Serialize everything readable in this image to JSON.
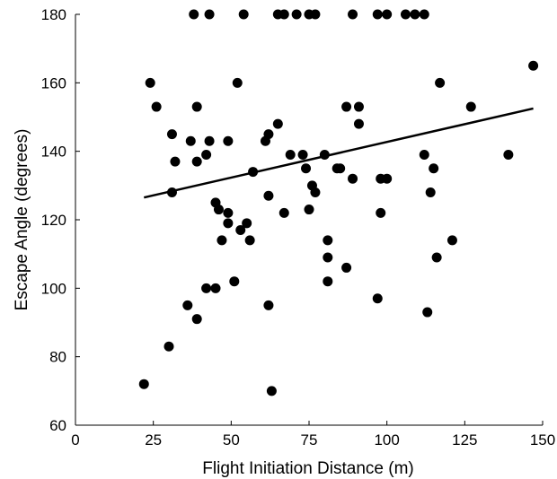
{
  "chart_data": {
    "type": "scatter",
    "xlabel": "Flight Initiation Distance (m)",
    "ylabel": "Escape Angle (degrees)",
    "xlim": [
      0,
      150
    ],
    "ylim": [
      60,
      180
    ],
    "xticks": [
      0,
      25,
      50,
      75,
      100,
      125,
      150
    ],
    "yticks": [
      60,
      80,
      100,
      120,
      140,
      160,
      180
    ],
    "grid": false,
    "legend": "none",
    "series": [
      {
        "points": [
          [
            38,
            180
          ],
          [
            43,
            180
          ],
          [
            54,
            180
          ],
          [
            65,
            180
          ],
          [
            67,
            180
          ],
          [
            71,
            180
          ],
          [
            75,
            180
          ],
          [
            77,
            180
          ],
          [
            89,
            180
          ],
          [
            97,
            180
          ],
          [
            100,
            180
          ],
          [
            106,
            180
          ],
          [
            109,
            180
          ],
          [
            112,
            180
          ],
          [
            24,
            160
          ],
          [
            52,
            160
          ],
          [
            117,
            160
          ],
          [
            147,
            165
          ],
          [
            26,
            153
          ],
          [
            39,
            153
          ],
          [
            87,
            153
          ],
          [
            91,
            153
          ],
          [
            127,
            153
          ],
          [
            31,
            145
          ],
          [
            37,
            143
          ],
          [
            43,
            143
          ],
          [
            49,
            143
          ],
          [
            61,
            143
          ],
          [
            62,
            145
          ],
          [
            65,
            148
          ],
          [
            91,
            148
          ],
          [
            32,
            137
          ],
          [
            39,
            137
          ],
          [
            42,
            139
          ],
          [
            69,
            139
          ],
          [
            73,
            139
          ],
          [
            74,
            135
          ],
          [
            80,
            139
          ],
          [
            84,
            135
          ],
          [
            85,
            135
          ],
          [
            112,
            139
          ],
          [
            115,
            135
          ],
          [
            139,
            139
          ],
          [
            57,
            134
          ],
          [
            31,
            128
          ],
          [
            45,
            125
          ],
          [
            46,
            123
          ],
          [
            62,
            127
          ],
          [
            75,
            123
          ],
          [
            76,
            130
          ],
          [
            77,
            128
          ],
          [
            89,
            132
          ],
          [
            98,
            132
          ],
          [
            100,
            132
          ],
          [
            114,
            128
          ],
          [
            47,
            114
          ],
          [
            49,
            122
          ],
          [
            49,
            119
          ],
          [
            53,
            117
          ],
          [
            55,
            119
          ],
          [
            56,
            114
          ],
          [
            67,
            122
          ],
          [
            81,
            114
          ],
          [
            98,
            122
          ],
          [
            81,
            109
          ],
          [
            87,
            106
          ],
          [
            116,
            109
          ],
          [
            121,
            114
          ],
          [
            36,
            95
          ],
          [
            39,
            91
          ],
          [
            42,
            100
          ],
          [
            45,
            100
          ],
          [
            51,
            102
          ],
          [
            62,
            95
          ],
          [
            81,
            102
          ],
          [
            97,
            97
          ],
          [
            113,
            93
          ],
          [
            30,
            83
          ],
          [
            22,
            72
          ],
          [
            63,
            70
          ]
        ]
      }
    ],
    "trendline": {
      "x": [
        22,
        147
      ],
      "y": [
        126.5,
        152.5
      ]
    }
  }
}
